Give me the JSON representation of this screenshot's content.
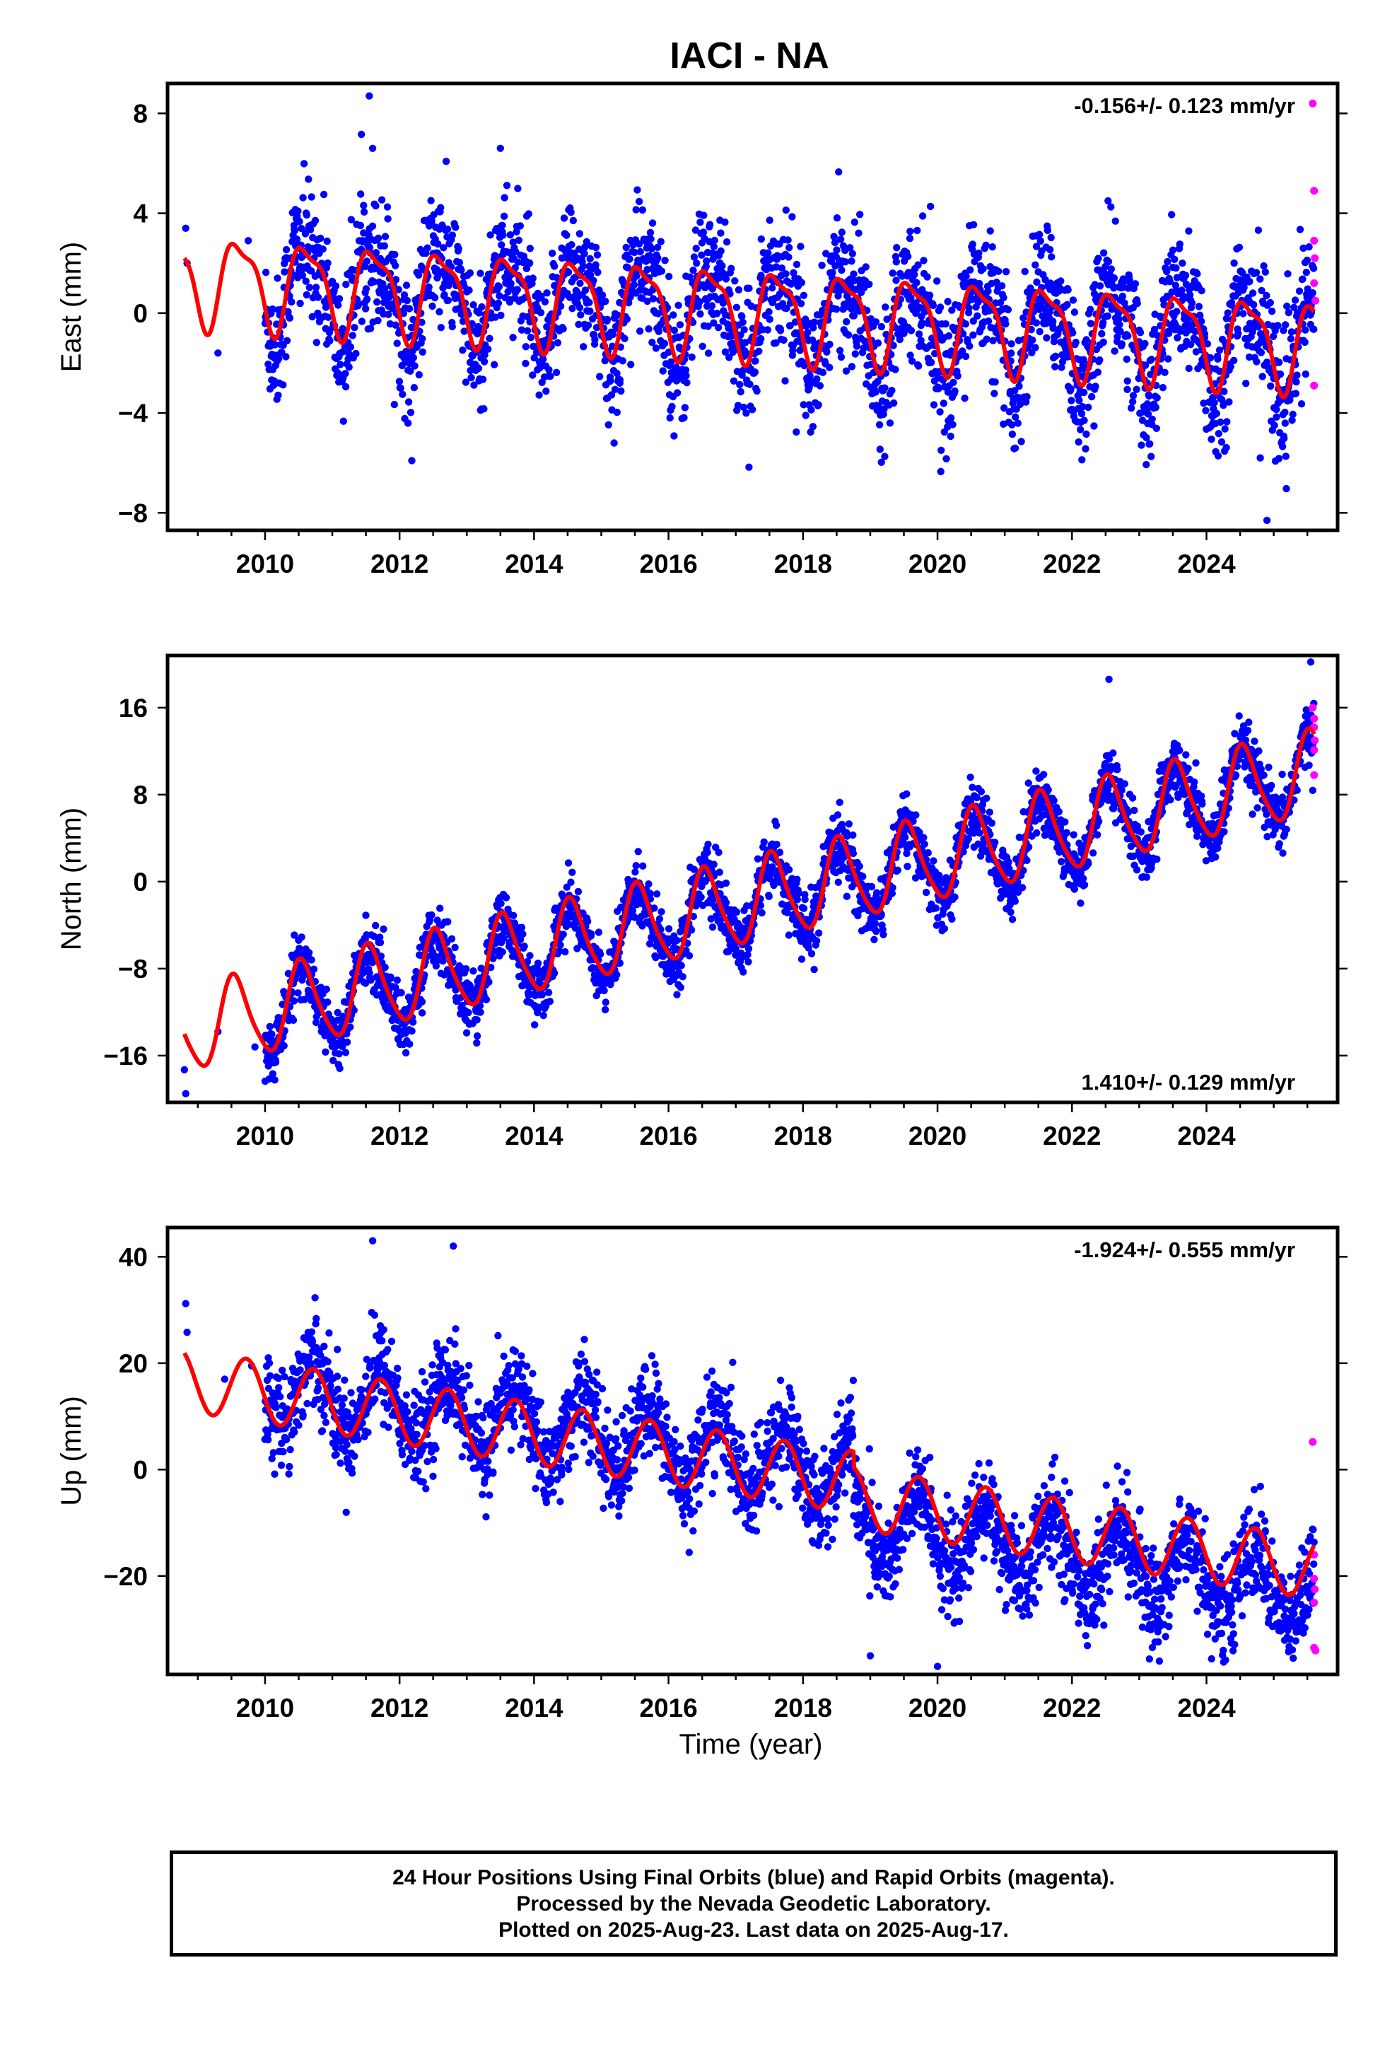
{
  "title": "IACI - NA",
  "x_axis_label": "Time (year)",
  "caption_lines": [
    "24 Hour Positions Using Final Orbits (blue) and Rapid Orbits (magenta).",
    "Processed by the Nevada Geodetic Laboratory.",
    "Plotted on 2025-Aug-23. Last data on 2025-Aug-17."
  ],
  "colors": {
    "final_orbits": "#0000ff",
    "rapid_orbits": "#ff00ff",
    "model_fit": "#ff0000",
    "frame": "#000000"
  },
  "chart_data": [
    {
      "type": "scatter",
      "name": "east",
      "ylabel": "East (mm)",
      "rate_text": "-0.156+/- 0.123 mm/yr",
      "rate_position": "top-right",
      "xlim": [
        2008.55,
        2025.95
      ],
      "ylim": [
        -8.7,
        9.2
      ],
      "x_ticks": [
        2010,
        2012,
        2014,
        2016,
        2018,
        2020,
        2022,
        2024
      ],
      "y_ticks": [
        -8,
        -4,
        0,
        4,
        8
      ],
      "y_tick_labels": [
        "−8",
        "−4",
        "0",
        "4",
        "8"
      ],
      "final_orbits": {
        "description_only": false,
        "trend_mm_per_yr": -0.156,
        "intercept_mm_at_2010": 1.1,
        "annual_amp_mm": 1.9,
        "annual_peak_year_fraction": 0.62,
        "semiannual_amp_mm": 0.6,
        "scatter_sd_mm": 1.3,
        "start": 2010.0,
        "end": 2025.6,
        "step": 0.0055,
        "early_points": [
          [
            2008.82,
            3.4
          ],
          [
            2008.84,
            2.0
          ],
          [
            2009.3,
            -1.6
          ],
          [
            2009.75,
            2.9
          ]
        ],
        "outliers": [
          [
            2011.55,
            8.7
          ],
          [
            2011.6,
            6.6
          ],
          [
            2013.5,
            6.6
          ],
          [
            2024.9,
            -8.3
          ],
          [
            2024.8,
            -5.8
          ]
        ]
      },
      "rapid_orbits": [
        [
          2025.58,
          8.4
        ],
        [
          2025.6,
          4.9
        ],
        [
          2025.6,
          2.9
        ],
        [
          2025.61,
          2.2
        ],
        [
          2025.6,
          1.2
        ],
        [
          2025.62,
          0.5
        ],
        [
          2025.6,
          -2.9
        ]
      ],
      "model_fit": {
        "trend_mm_per_yr": -0.156,
        "offset_mm": 1.2,
        "annual_amp_mm": 1.7,
        "annual_peak_year_fraction": 0.62,
        "semiannual_amp_mm": 0.55,
        "semiannual_phase": 1.1,
        "start": 2008.8,
        "end": 2025.6
      }
    },
    {
      "type": "scatter",
      "name": "north",
      "ylabel": "North (mm)",
      "rate_text": "1.410+/- 0.129 mm/yr",
      "rate_position": "bottom-right",
      "xlim": [
        2008.55,
        2025.95
      ],
      "ylim": [
        -20.3,
        20.8
      ],
      "x_ticks": [
        2010,
        2012,
        2014,
        2016,
        2018,
        2020,
        2022,
        2024
      ],
      "y_ticks": [
        -16,
        -8,
        0,
        8,
        16
      ],
      "y_tick_labels": [
        "−16",
        "−8",
        "0",
        "8",
        "16"
      ],
      "final_orbits": {
        "trend_mm_per_yr": 1.41,
        "intercept_mm_at_2010": -12.2,
        "annual_amp_mm": 3.6,
        "annual_peak_year_fraction": 0.55,
        "semiannual_amp_mm": 0.5,
        "scatter_sd_mm": 1.4,
        "start": 2010.0,
        "end": 2025.6,
        "step": 0.0055,
        "early_points": [
          [
            2008.8,
            -17.3
          ],
          [
            2008.82,
            -19.5
          ],
          [
            2009.3,
            -13.8
          ],
          [
            2009.85,
            -15.2
          ]
        ],
        "outliers": [
          [
            2025.55,
            20.2
          ],
          [
            2022.55,
            18.6
          ]
        ]
      },
      "rapid_orbits": [
        [
          2025.58,
          16.0
        ],
        [
          2025.6,
          15.0
        ],
        [
          2025.6,
          14.2
        ],
        [
          2025.61,
          13.0
        ],
        [
          2025.6,
          12.1
        ],
        [
          2025.6,
          9.8
        ]
      ],
      "model_fit": {
        "trend_mm_per_yr": 1.41,
        "offset_mm": -12.0,
        "annual_amp_mm": 3.8,
        "annual_peak_year_fraction": 0.55,
        "semiannual_amp_mm": 0.6,
        "semiannual_phase": 0.4,
        "start": 2008.8,
        "end": 2025.6
      }
    },
    {
      "type": "scatter",
      "name": "up",
      "ylabel": "Up (mm)",
      "rate_text": "-1.924+/- 0.555 mm/yr",
      "rate_position": "top-right",
      "xlim": [
        2008.55,
        2025.95
      ],
      "ylim": [
        -38.5,
        45.5
      ],
      "x_ticks": [
        2010,
        2012,
        2014,
        2016,
        2018,
        2020,
        2022,
        2024
      ],
      "y_ticks": [
        -20,
        0,
        20,
        40
      ],
      "y_tick_labels": [
        "−20",
        "0",
        "20",
        "40"
      ],
      "final_orbits": {
        "trend_mm_per_yr": -1.924,
        "intercept_mm_at_2010": 16.0,
        "annual_amp_mm": 6.5,
        "annual_peak_year_fraction": 0.72,
        "semiannual_amp_mm": 0.0,
        "scatter_sd_mm": 4.5,
        "offset_step": {
          "year": 2018.75,
          "mm": -9.0
        },
        "start": 2010.0,
        "end": 2025.6,
        "step": 0.0055,
        "early_points": [
          [
            2008.82,
            31.2
          ],
          [
            2008.84,
            25.8
          ],
          [
            2009.4,
            17.0
          ],
          [
            2009.8,
            19.5
          ]
        ],
        "outliers": [
          [
            2011.6,
            43.0
          ],
          [
            2012.8,
            42.0
          ],
          [
            2019.0,
            -35.0
          ],
          [
            2020.0,
            -37.0
          ],
          [
            2023.3,
            -36.0
          ]
        ]
      },
      "rapid_orbits": [
        [
          2025.58,
          5.2
        ],
        [
          2025.6,
          -16.0
        ],
        [
          2025.6,
          -20.5
        ],
        [
          2025.61,
          -22.5
        ],
        [
          2025.6,
          -25.0
        ],
        [
          2025.6,
          -33.5
        ],
        [
          2025.62,
          -34.0
        ]
      ],
      "model_fit": {
        "trend_mm_per_yr": -1.924,
        "offset_mm": 14.5,
        "annual_amp_mm": 5.8,
        "annual_peak_year_fraction": 0.72,
        "semiannual_amp_mm": 0.0,
        "semiannual_phase": 0.0,
        "offset_step": {
          "year": 2018.75,
          "mm": -3.0
        },
        "start": 2008.8,
        "end": 2025.6
      }
    }
  ]
}
